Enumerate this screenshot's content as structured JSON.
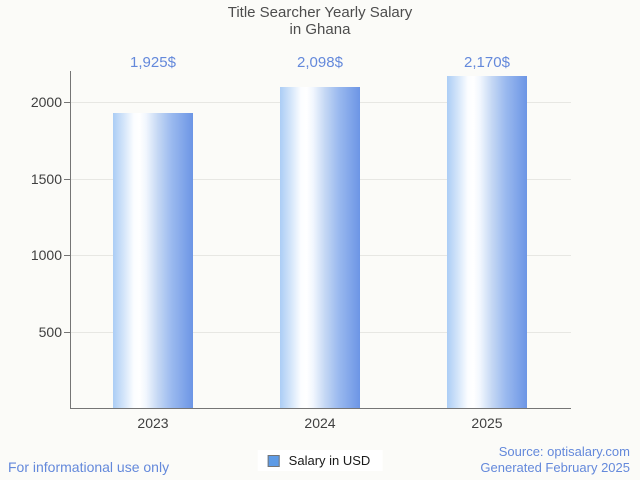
{
  "title": {
    "line1": "Title Searcher Yearly Salary",
    "line2": "in Ghana"
  },
  "legend": {
    "label": "Salary in USD"
  },
  "footer": {
    "left": "For informational use only",
    "source": "Source: optisalary.com",
    "generated": "Generated February 2025"
  },
  "colors": {
    "background": "#FBFBF8",
    "title_text": "#4D4D4D",
    "axis_text": "#404040",
    "blue_text": "#6489DB",
    "gridline": "#E7E7E3",
    "axis_line": "#757575",
    "legend_marker_fill": "#5E9BE6",
    "legend_marker_border": "#757575",
    "bar_gradient_left": "#ABCDF5",
    "bar_gradient_highlight": "#FFFFFF",
    "bar_gradient_right": "#6C95E5"
  },
  "chart_data": {
    "type": "bar",
    "title": "Title Searcher Yearly Salary in Ghana",
    "categories": [
      "2023",
      "2024",
      "2025"
    ],
    "values": [
      1925,
      2098,
      2170
    ],
    "value_labels": [
      "1,925$",
      "2,098$",
      "2,170$"
    ],
    "series": [
      {
        "name": "Salary in USD",
        "values": [
          1925,
          2098,
          2170
        ]
      }
    ],
    "xlabel": "",
    "ylabel": "",
    "yticks": [
      500,
      1000,
      1500,
      2000
    ],
    "ylim": [
      0,
      2200
    ],
    "grid": true,
    "legend_position": "bottom-center"
  }
}
